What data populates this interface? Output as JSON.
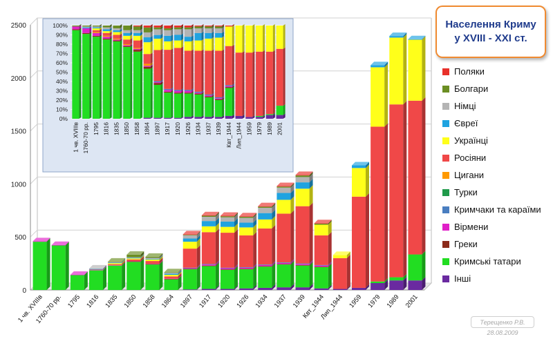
{
  "title_lines": [
    "Населення Криму",
    "у XVIII - XXI ст."
  ],
  "author": "Терещенко Р.В.",
  "date": "28.08.2009",
  "colors": {
    "poles": "#e8302a",
    "bulgarians": "#6b8e23",
    "germans": "#b4b4b4",
    "jews": "#1fa3e0",
    "ukrainians": "#ffff1a",
    "russians": "#f04848",
    "roma": "#ff9a00",
    "turks": "#1f9a4a",
    "krymchaks_karaites": "#4a7ec0",
    "armenians": "#e020c8",
    "greeks": "#8b2a1a",
    "crimean_tatars": "#22dd22",
    "others": "#6a2aa0"
  },
  "chart_data": [
    {
      "type": "bar",
      "stacked": true,
      "render": "3d-stacked-column",
      "categories": [
        "1 чв. XVIIIв",
        "1760-70 рр.",
        "1795",
        "1816",
        "1835",
        "1850",
        "1858",
        "1864",
        "1897",
        "1917",
        "1920",
        "1926",
        "1934",
        "1937",
        "1939",
        "Квт_1944",
        "Лип_1944",
        "1959",
        "1979",
        "1989",
        "2001"
      ],
      "ylim": [
        0,
        2500
      ],
      "yticks": [
        0,
        500,
        1000,
        1500,
        2000,
        2500
      ],
      "grid": true,
      "legend_position": "right",
      "series": [
        {
          "key": "others",
          "name": "Інші",
          "values": [
            0,
            0,
            0,
            0,
            0,
            0,
            0,
            0,
            5,
            10,
            10,
            15,
            20,
            25,
            25,
            15,
            10,
            20,
            65,
            90,
            90
          ]
        },
        {
          "key": "crimean_tatars",
          "name": "Кримські татари",
          "values": [
            455,
            420,
            140,
            185,
            230,
            265,
            240,
            100,
            190,
            215,
            180,
            180,
            200,
            215,
            205,
            200,
            0,
            0,
            15,
            30,
            245
          ]
        },
        {
          "key": "greeks",
          "name": "Греки",
          "values": [
            0,
            0,
            0,
            0,
            0,
            5,
            5,
            5,
            5,
            5,
            5,
            5,
            5,
            5,
            5,
            5,
            0,
            0,
            0,
            0,
            0
          ]
        },
        {
          "key": "armenians",
          "name": "Вірмени",
          "values": [
            5,
            5,
            3,
            3,
            3,
            3,
            3,
            3,
            5,
            10,
            10,
            10,
            10,
            10,
            10,
            10,
            0,
            0,
            0,
            0,
            0
          ]
        },
        {
          "key": "krymchaks_karaites",
          "name": "Кримчаки та караїми",
          "values": [
            0,
            0,
            0,
            0,
            0,
            0,
            0,
            0,
            5,
            5,
            5,
            5,
            5,
            5,
            5,
            5,
            0,
            0,
            0,
            0,
            0
          ]
        },
        {
          "key": "turks",
          "name": "Турки",
          "values": [
            0,
            0,
            0,
            0,
            0,
            0,
            0,
            0,
            0,
            0,
            0,
            0,
            0,
            0,
            0,
            0,
            0,
            0,
            0,
            0,
            0
          ]
        },
        {
          "key": "roma",
          "name": "Цигани",
          "values": [
            0,
            0,
            0,
            0,
            0,
            0,
            0,
            0,
            0,
            0,
            0,
            0,
            0,
            0,
            0,
            0,
            0,
            0,
            0,
            0,
            0
          ]
        },
        {
          "key": "russians",
          "name": "Росіяни",
          "values": [
            0,
            0,
            0,
            5,
            10,
            15,
            25,
            20,
            180,
            300,
            330,
            300,
            340,
            460,
            540,
            280,
            290,
            860,
            1460,
            1630,
            1450
          ]
        },
        {
          "key": "ukrainians",
          "name": "Українці",
          "values": [
            0,
            0,
            0,
            0,
            10,
            10,
            15,
            15,
            65,
            55,
            55,
            75,
            85,
            130,
            165,
            100,
            30,
            270,
            560,
            630,
            575
          ]
        },
        {
          "key": "jews",
          "name": "Євреї",
          "values": [
            0,
            0,
            0,
            5,
            5,
            5,
            5,
            10,
            30,
            50,
            50,
            45,
            60,
            65,
            60,
            0,
            0,
            25,
            20,
            15,
            5
          ]
        },
        {
          "key": "germans",
          "name": "Німці",
          "values": [
            0,
            0,
            0,
            5,
            5,
            5,
            10,
            10,
            30,
            40,
            40,
            45,
            50,
            50,
            50,
            0,
            0,
            0,
            0,
            0,
            0
          ]
        },
        {
          "key": "bulgarians",
          "name": "Болгари",
          "values": [
            0,
            0,
            0,
            0,
            5,
            25,
            10,
            5,
            5,
            10,
            10,
            10,
            10,
            10,
            15,
            10,
            0,
            0,
            0,
            0,
            0
          ]
        },
        {
          "key": "poles",
          "name": "Поляки",
          "values": [
            0,
            0,
            0,
            0,
            0,
            0,
            0,
            0,
            5,
            5,
            5,
            5,
            5,
            5,
            5,
            5,
            0,
            0,
            0,
            0,
            0
          ]
        }
      ]
    },
    {
      "type": "bar",
      "stacked": true,
      "percent": true,
      "render": "100%-stacked-column",
      "categories": [
        "1 чв. XVIIIв",
        "1760-70 рр.",
        "1795",
        "1816",
        "1835",
        "1850",
        "1858",
        "1864",
        "1897",
        "1917",
        "1920",
        "1926",
        "1934",
        "1937",
        "1939",
        "Квт_1944",
        "Лип_1944",
        "1959",
        "1979",
        "1989",
        "2001"
      ],
      "ylim": [
        0,
        100
      ],
      "yticks": [
        "0%",
        "10%",
        "20%",
        "30%",
        "40%",
        "50%",
        "60%",
        "70%",
        "80%",
        "90%",
        "100%"
      ],
      "grid": true,
      "series": [
        {
          "key": "others",
          "name": "Інші",
          "values": [
            0,
            0,
            0,
            0,
            0,
            0,
            0,
            1,
            1,
            1,
            1,
            2,
            2,
            2,
            2,
            3,
            3,
            2,
            2,
            4,
            4
          ]
        },
        {
          "key": "crimean_tatars",
          "name": "Кримські татари",
          "values": [
            95,
            91,
            88,
            85,
            83,
            77,
            72,
            50,
            35,
            27,
            26,
            25,
            24,
            21,
            18,
            30,
            0,
            0,
            1,
            1,
            10
          ]
        },
        {
          "key": "greeks",
          "name": "Греки",
          "values": [
            1,
            1,
            1,
            1,
            1,
            1,
            2,
            2,
            2,
            1,
            1,
            1,
            1,
            1,
            1,
            1,
            0,
            0,
            0,
            0,
            0
          ]
        },
        {
          "key": "armenians",
          "name": "Вірмени",
          "values": [
            3,
            5,
            3,
            2,
            1,
            1,
            1,
            1,
            1,
            2,
            2,
            2,
            1,
            1,
            1,
            1,
            0,
            0,
            0,
            0,
            0
          ]
        },
        {
          "key": "krymchaks_karaites",
          "name": "Кримчаки та караїми",
          "values": [
            0,
            0,
            0,
            0,
            0,
            0,
            0,
            0,
            1,
            1,
            1,
            1,
            1,
            1,
            1,
            1,
            0,
            0,
            0,
            0,
            0
          ]
        },
        {
          "key": "turks",
          "name": "Турки",
          "values": [
            0,
            0,
            0,
            0,
            0,
            0,
            0,
            0,
            0,
            0,
            0,
            0,
            0,
            0,
            0,
            0,
            0,
            0,
            0,
            0,
            0
          ]
        },
        {
          "key": "roma",
          "name": "Цигани",
          "values": [
            0,
            0,
            1,
            1,
            1,
            1,
            1,
            2,
            0,
            0,
            0,
            0,
            0,
            0,
            0,
            0,
            0,
            0,
            0,
            0,
            0
          ]
        },
        {
          "key": "russians",
          "name": "Росіяни",
          "values": [
            0,
            0,
            2,
            3,
            4,
            5,
            8,
            10,
            33,
            42,
            45,
            42,
            44,
            47,
            50,
            42,
            68,
            69,
            69,
            67,
            61
          ]
        },
        {
          "key": "ukrainians",
          "name": "Українці",
          "values": [
            0,
            0,
            2,
            2,
            3,
            4,
            5,
            12,
            12,
            9,
            8,
            10,
            11,
            13,
            14,
            21,
            29,
            29,
            28,
            28,
            25
          ]
        },
        {
          "key": "jews",
          "name": "Євреї",
          "values": [
            0,
            1,
            1,
            2,
            2,
            3,
            3,
            5,
            4,
            6,
            6,
            5,
            8,
            6,
            5,
            0,
            0,
            0,
            0,
            0,
            0
          ]
        },
        {
          "key": "germans",
          "name": "Німці",
          "values": [
            0,
            1,
            1,
            2,
            2,
            3,
            3,
            5,
            6,
            6,
            6,
            8,
            5,
            5,
            5,
            0,
            0,
            0,
            0,
            0,
            0
          ]
        },
        {
          "key": "bulgarians",
          "name": "Болгари",
          "values": [
            1,
            1,
            1,
            2,
            3,
            5,
            4,
            5,
            2,
            2,
            2,
            2,
            2,
            2,
            2,
            0,
            0,
            0,
            0,
            0,
            0
          ]
        },
        {
          "key": "poles",
          "name": "Поляки",
          "values": [
            0,
            0,
            0,
            0,
            0,
            0,
            1,
            2,
            2,
            3,
            2,
            2,
            1,
            1,
            1,
            1,
            0,
            0,
            0,
            0,
            0
          ]
        }
      ]
    }
  ]
}
